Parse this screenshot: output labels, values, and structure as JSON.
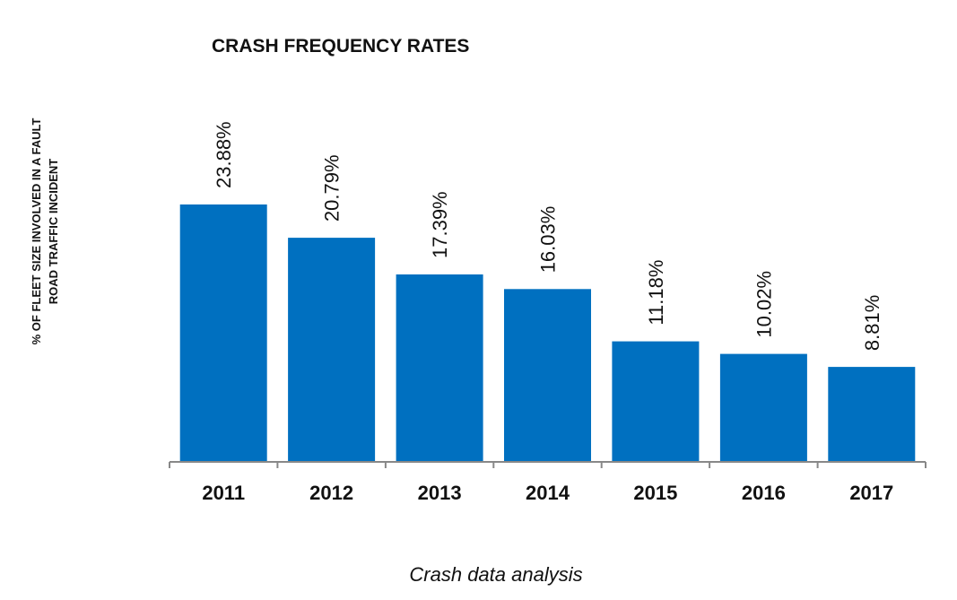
{
  "chart_data": {
    "type": "bar",
    "title": "CRASH FREQUENCY RATES",
    "ylabel_lines": [
      "% OF FLEET SIZE INVOLVED IN A FAULT",
      "ROAD TRAFFIC INCIDENT"
    ],
    "xlabel": "Crash data analysis",
    "categories": [
      "2011",
      "2012",
      "2013",
      "2014",
      "2015",
      "2016",
      "2017"
    ],
    "values": [
      23.88,
      20.79,
      17.39,
      16.03,
      11.18,
      10.02,
      8.81
    ],
    "data_labels": [
      "23.88%",
      "20.79%",
      "17.39%",
      "16.03%",
      "11.18%",
      "10.02%",
      "8.81%"
    ],
    "ylim": [
      0,
      23.88
    ],
    "grid": false,
    "legend": "none",
    "bar_color": "#0070C0",
    "axis_color": "#888888"
  }
}
